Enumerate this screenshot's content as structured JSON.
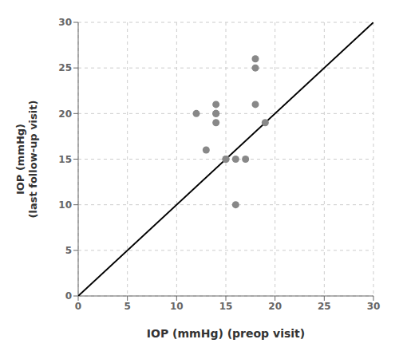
{
  "chart_data": {
    "type": "scatter",
    "xlabel": "IOP (mmHg) (preop visit)",
    "ylabel": "IOP (mmHg)\n(last follow-up visit)",
    "xlim": [
      0,
      30
    ],
    "ylim": [
      0,
      30
    ],
    "xticks": [
      0,
      5,
      10,
      15,
      20,
      25,
      30
    ],
    "yticks": [
      0,
      5,
      10,
      15,
      20,
      25,
      30
    ],
    "grid": true,
    "series": [
      {
        "type": "line",
        "color": "#000000",
        "x": [
          0,
          30
        ],
        "values": [
          0,
          30
        ]
      },
      {
        "type": "scatter",
        "color": "#888888",
        "x": [
          12,
          13,
          14,
          14,
          14,
          14,
          15,
          15,
          16,
          17,
          18,
          18,
          18,
          19,
          16
        ],
        "values": [
          20,
          16,
          21,
          20,
          19,
          20,
          15,
          15,
          15,
          15,
          26,
          25,
          21,
          19,
          10
        ]
      }
    ]
  }
}
